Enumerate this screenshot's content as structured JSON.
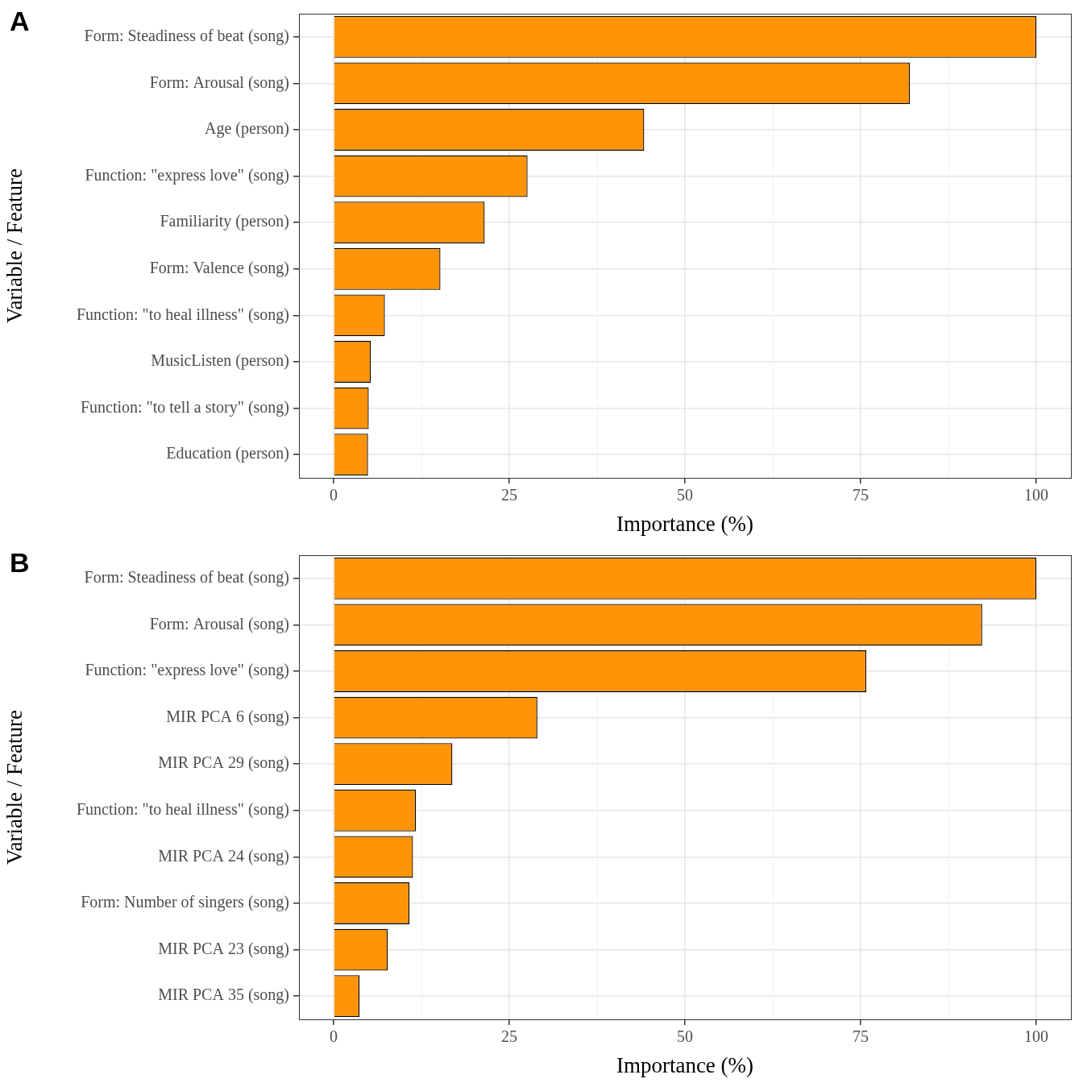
{
  "chart_data": [
    {
      "type": "bar",
      "title": "A",
      "orientation": "horizontal",
      "categories": [
        "Form: Steadiness of beat (song)",
        "Form: Arousal (song)",
        "Age (person)",
        "Function: \"express love\" (song)",
        "Familiarity (person)",
        "Form: Valence (song)",
        "Function: \"to heal illness\" (song)",
        "MusicListen (person)",
        "Function: \"to tell a story\" (song)",
        "Education (person)"
      ],
      "values": [
        100,
        82,
        44.2,
        27.6,
        21.5,
        15.2,
        7.3,
        5.3,
        5.0,
        4.9
      ],
      "color": "#ff9408",
      "x_label": "Importance (%)",
      "y_label": "Variable / Feature",
      "xlim": [
        -4.93,
        104.93
      ],
      "xticks": [
        0,
        25,
        50,
        75,
        100
      ],
      "grid": true
    },
    {
      "type": "bar",
      "title": "B",
      "orientation": "horizontal",
      "categories": [
        "Form: Steadiness of beat (song)",
        "Form: Arousal (song)",
        "Function: \"express love\" (song)",
        "MIR PCA 6 (song)",
        "MIR PCA 29 (song)",
        "Function: \"to heal illness\" (song)",
        "MIR PCA 24 (song)",
        "Form: Number of singers (song)",
        "MIR PCA 23 (song)",
        "MIR PCA 35 (song)"
      ],
      "values": [
        100,
        92.3,
        75.8,
        29,
        16.9,
        11.7,
        11.3,
        10.8,
        7.7,
        3.7
      ],
      "color": "#ff9408",
      "x_label": "Importance (%)",
      "y_label": "Variable / Feature",
      "xlim": [
        -4.93,
        104.93
      ],
      "xticks": [
        0,
        25,
        50,
        75,
        100
      ],
      "grid": true
    }
  ]
}
